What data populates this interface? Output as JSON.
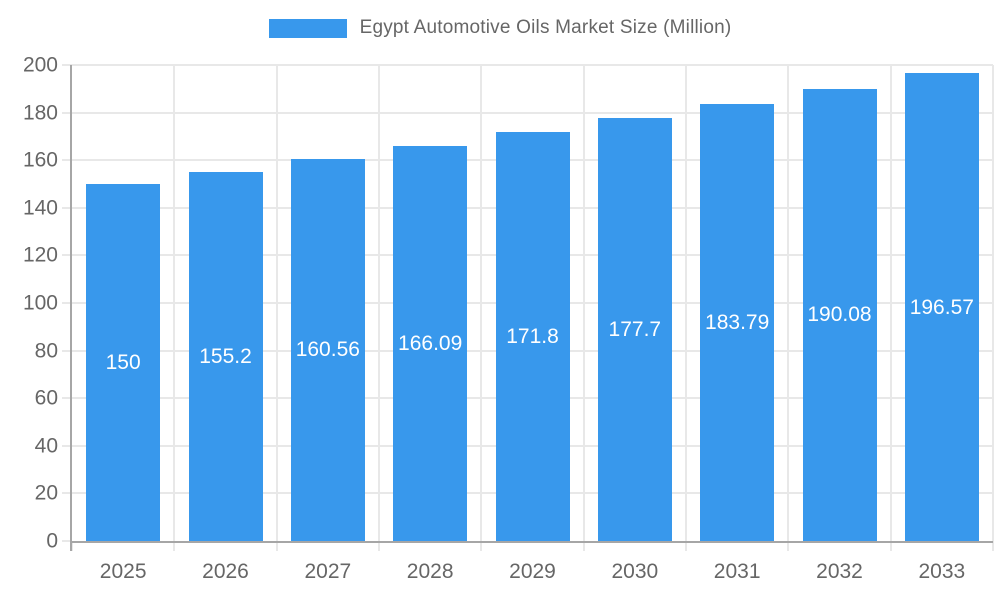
{
  "chart_data": {
    "type": "bar",
    "title": "Egypt Automotive Oils Market Size (Million)",
    "categories": [
      "2025",
      "2026",
      "2027",
      "2028",
      "2029",
      "2030",
      "2031",
      "2032",
      "2033"
    ],
    "values": [
      150,
      155.2,
      160.56,
      166.09,
      171.8,
      177.7,
      183.79,
      190.08,
      196.57
    ],
    "value_labels": [
      "150",
      "155.2",
      "160.56",
      "166.09",
      "171.8",
      "177.7",
      "183.79",
      "190.08",
      "196.57"
    ],
    "xlabel": "",
    "ylabel": "",
    "ylim": [
      0,
      200
    ],
    "ytick_step": 20,
    "grid": true,
    "legend_position": "top"
  },
  "colors": {
    "bar": "#3898EC",
    "grid": "#e8e8e8",
    "axis": "#a6a6a6",
    "tick_text": "#666666",
    "value_text": "#ffffff",
    "background": "#ffffff"
  }
}
